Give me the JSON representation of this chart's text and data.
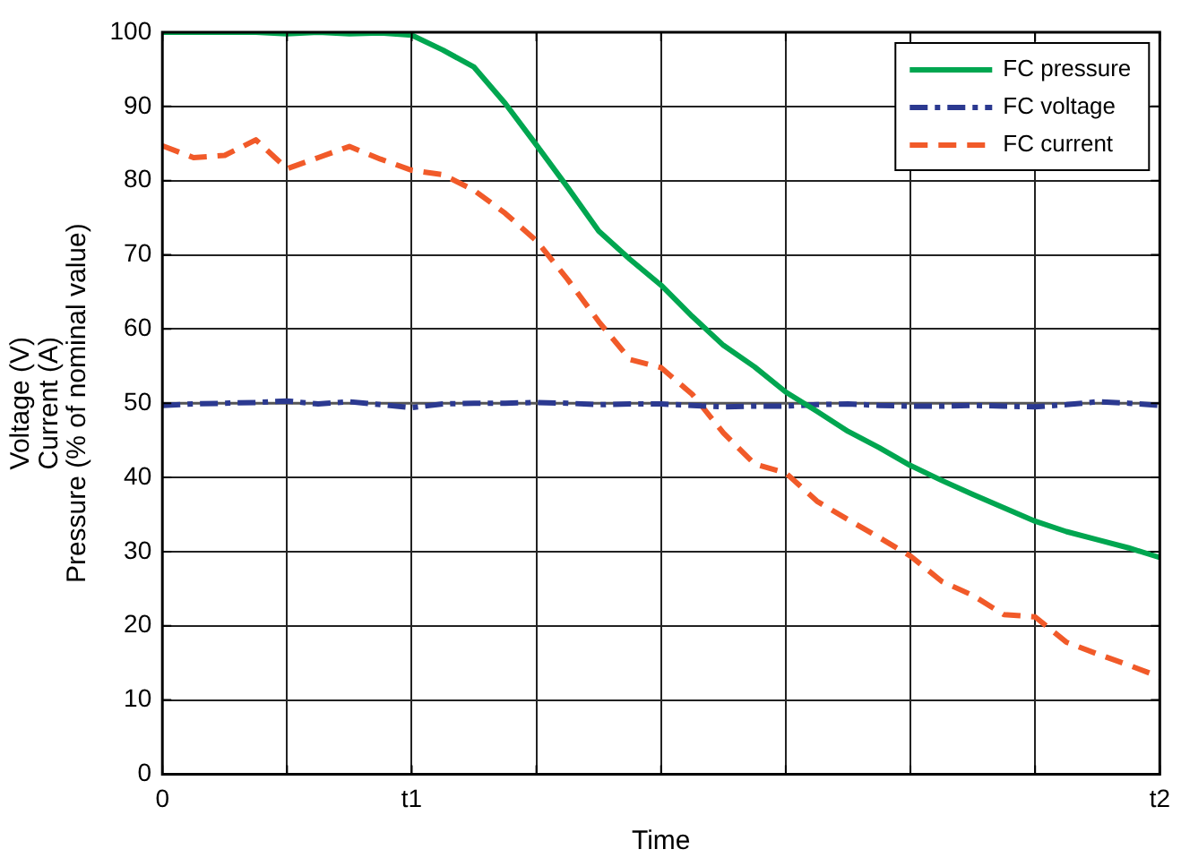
{
  "chart_data": {
    "type": "line",
    "xlabel": "Time",
    "ylabel": "Voltage (V)\nCurrent (A)\nPressure (% of nominal value)",
    "categories": [
      "0",
      null,
      null,
      null,
      null,
      null,
      null,
      null,
      "t1",
      null,
      null,
      null,
      null,
      null,
      null,
      null,
      null,
      null,
      null,
      null,
      null,
      null,
      null,
      null,
      null,
      null,
      null,
      null,
      null,
      null,
      null,
      null,
      "t2"
    ],
    "ylim": [
      0,
      100
    ],
    "yticks": [
      0,
      10,
      20,
      30,
      40,
      50,
      60,
      70,
      80,
      90,
      100
    ],
    "grid": true,
    "legend": "top right",
    "marker": "none",
    "ref_lines": [
      {
        "axis": "y",
        "value": 50,
        "color": "#555555"
      }
    ],
    "series": [
      {
        "name": "FC pressure",
        "color": "#00a650",
        "line_style": "solid",
        "values": [
          100,
          100,
          100,
          100,
          99.8,
          100,
          99.8,
          99.9,
          99.6,
          97.6,
          95.3,
          90.4,
          84.8,
          79.1,
          73.2,
          69.4,
          65.9,
          61.7,
          57.8,
          54.9,
          51.5,
          48.9,
          46.2,
          44.0,
          41.6,
          39.6,
          37.7,
          35.9,
          34.1,
          32.7,
          31.6,
          30.5,
          29.2
        ]
      },
      {
        "name": "FC voltage",
        "color": "#2b3990",
        "line_style": "dashdot",
        "values": [
          49.7,
          49.9,
          50,
          50.1,
          50.3,
          49.9,
          50.2,
          49.8,
          49.4,
          49.9,
          50,
          50,
          50.1,
          50,
          49.8,
          49.9,
          49.9,
          49.7,
          49.5,
          49.6,
          49.6,
          49.8,
          49.9,
          49.7,
          49.6,
          49.6,
          49.7,
          49.6,
          49.5,
          49.8,
          50.2,
          50,
          49.7
        ]
      },
      {
        "name": "FC current",
        "color": "#f15a29",
        "line_style": "dashed",
        "values": [
          84.7,
          83.1,
          83.4,
          85.5,
          81.6,
          83.1,
          84.6,
          82.9,
          81.4,
          80.8,
          78.7,
          75.6,
          71.9,
          66.7,
          61.0,
          55.9,
          54.8,
          51.2,
          46.0,
          41.8,
          40.6,
          36.8,
          34.3,
          31.9,
          29.4,
          26.0,
          24.1,
          21.5,
          21.2,
          17.8,
          16.2,
          14.7,
          13.1
        ]
      }
    ]
  }
}
